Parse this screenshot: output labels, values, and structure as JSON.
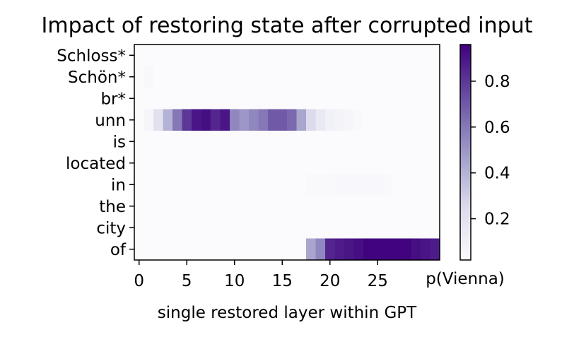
{
  "chart_data": {
    "type": "heatmap",
    "title": "Impact of restoring state after corrupted input",
    "xlabel": "single restored layer within GPT",
    "ylabel": "",
    "rows": [
      "Schloss*",
      "Schön*",
      "br*",
      "unn",
      "is",
      "located",
      "in",
      "the",
      "city",
      "of"
    ],
    "x_values": [
      0,
      1,
      2,
      3,
      4,
      5,
      6,
      7,
      8,
      9,
      10,
      11,
      12,
      13,
      14,
      15,
      16,
      17,
      18,
      19,
      20,
      21,
      22,
      23,
      24,
      25,
      26,
      27,
      28,
      29,
      30,
      31
    ],
    "x_ticks": [
      0,
      5,
      10,
      15,
      20,
      25
    ],
    "colorbar": {
      "label": "p(Vienna)",
      "ticks": [
        0.2,
        0.4,
        0.6,
        0.8
      ],
      "range": [
        0.02,
        0.96
      ],
      "colormap": "Purples"
    },
    "values": [
      [
        0.03,
        0.03,
        0.03,
        0.03,
        0.03,
        0.03,
        0.03,
        0.03,
        0.03,
        0.03,
        0.03,
        0.03,
        0.03,
        0.03,
        0.03,
        0.03,
        0.03,
        0.03,
        0.03,
        0.03,
        0.03,
        0.03,
        0.03,
        0.03,
        0.03,
        0.03,
        0.03,
        0.03,
        0.03,
        0.03,
        0.03,
        0.03
      ],
      [
        0.03,
        0.05,
        0.03,
        0.03,
        0.03,
        0.03,
        0.03,
        0.03,
        0.03,
        0.03,
        0.03,
        0.03,
        0.03,
        0.03,
        0.03,
        0.03,
        0.03,
        0.03,
        0.03,
        0.03,
        0.03,
        0.03,
        0.03,
        0.03,
        0.03,
        0.03,
        0.03,
        0.03,
        0.03,
        0.03,
        0.03,
        0.03
      ],
      [
        0.03,
        0.03,
        0.03,
        0.03,
        0.03,
        0.03,
        0.03,
        0.03,
        0.03,
        0.03,
        0.03,
        0.03,
        0.03,
        0.03,
        0.03,
        0.03,
        0.03,
        0.03,
        0.03,
        0.03,
        0.03,
        0.03,
        0.03,
        0.03,
        0.03,
        0.03,
        0.03,
        0.03,
        0.03,
        0.03,
        0.03,
        0.03
      ],
      [
        0.03,
        0.06,
        0.2,
        0.4,
        0.6,
        0.8,
        0.9,
        0.92,
        0.85,
        0.9,
        0.55,
        0.5,
        0.55,
        0.6,
        0.7,
        0.7,
        0.65,
        0.45,
        0.25,
        0.15,
        0.1,
        0.08,
        0.06,
        0.04,
        0.03,
        0.03,
        0.03,
        0.03,
        0.03,
        0.03,
        0.03,
        0.03
      ],
      [
        0.03,
        0.03,
        0.03,
        0.03,
        0.03,
        0.03,
        0.03,
        0.03,
        0.03,
        0.03,
        0.03,
        0.03,
        0.03,
        0.03,
        0.03,
        0.03,
        0.03,
        0.03,
        0.03,
        0.03,
        0.03,
        0.03,
        0.03,
        0.03,
        0.03,
        0.03,
        0.03,
        0.03,
        0.03,
        0.03,
        0.03,
        0.03
      ],
      [
        0.03,
        0.03,
        0.03,
        0.03,
        0.03,
        0.03,
        0.03,
        0.03,
        0.03,
        0.03,
        0.03,
        0.03,
        0.03,
        0.03,
        0.03,
        0.03,
        0.03,
        0.03,
        0.03,
        0.03,
        0.03,
        0.03,
        0.03,
        0.03,
        0.03,
        0.03,
        0.03,
        0.03,
        0.03,
        0.03,
        0.03,
        0.03
      ],
      [
        0.03,
        0.03,
        0.03,
        0.03,
        0.03,
        0.03,
        0.03,
        0.03,
        0.03,
        0.03,
        0.03,
        0.03,
        0.03,
        0.03,
        0.03,
        0.03,
        0.03,
        0.03,
        0.04,
        0.04,
        0.04,
        0.05,
        0.05,
        0.05,
        0.05,
        0.05,
        0.04,
        0.03,
        0.03,
        0.03,
        0.03,
        0.03
      ],
      [
        0.03,
        0.03,
        0.03,
        0.03,
        0.03,
        0.03,
        0.03,
        0.03,
        0.03,
        0.03,
        0.03,
        0.03,
        0.03,
        0.03,
        0.03,
        0.03,
        0.03,
        0.03,
        0.03,
        0.03,
        0.03,
        0.03,
        0.03,
        0.03,
        0.03,
        0.03,
        0.03,
        0.03,
        0.03,
        0.03,
        0.03,
        0.03
      ],
      [
        0.03,
        0.03,
        0.03,
        0.03,
        0.03,
        0.03,
        0.03,
        0.03,
        0.03,
        0.03,
        0.03,
        0.03,
        0.03,
        0.03,
        0.03,
        0.03,
        0.03,
        0.03,
        0.03,
        0.03,
        0.03,
        0.03,
        0.03,
        0.03,
        0.03,
        0.03,
        0.03,
        0.03,
        0.03,
        0.03,
        0.03,
        0.03
      ],
      [
        0.03,
        0.03,
        0.03,
        0.03,
        0.03,
        0.03,
        0.03,
        0.03,
        0.03,
        0.03,
        0.03,
        0.03,
        0.03,
        0.03,
        0.03,
        0.03,
        0.03,
        0.03,
        0.45,
        0.55,
        0.85,
        0.88,
        0.9,
        0.92,
        0.95,
        0.95,
        0.95,
        0.95,
        0.95,
        0.92,
        0.9,
        0.88
      ]
    ]
  }
}
